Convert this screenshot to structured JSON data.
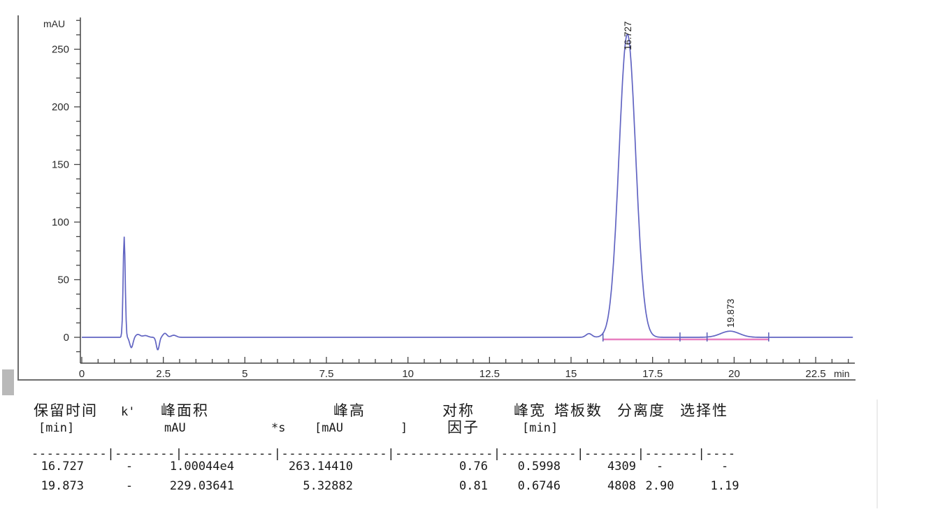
{
  "chart_data": {
    "type": "line",
    "title": "",
    "ylabel": "mAU",
    "xlabel": "min",
    "y_axis": {
      "unit": "mAU",
      "tick_values": [
        0,
        50,
        100,
        150,
        200,
        250
      ],
      "tick_labels": [
        "0",
        "50",
        "100",
        "150",
        "200",
        "250"
      ],
      "minor_step": 12.5,
      "range": [
        -22,
        278
      ]
    },
    "x_axis": {
      "unit": "min",
      "tick_values": [
        0,
        2.5,
        5,
        7.5,
        10,
        12.5,
        15,
        17.5,
        20,
        22.5
      ],
      "tick_labels": [
        "0",
        "2.5",
        "5",
        "7.5",
        "10",
        "12.5",
        "15",
        "17.5",
        "20",
        "22.5"
      ],
      "minor_step": 0.5,
      "range": [
        0,
        23.65
      ]
    },
    "trace_color": "#6164c2",
    "integration_baseline_color": "#e87fc0",
    "marker_color": "#5053b0",
    "axis_color": "#444444",
    "labeled_peaks": [
      {
        "label": "16.727",
        "rt_min": 16.727,
        "height_mAU": 263.1441,
        "width_min": 0.5998
      },
      {
        "label": "19.873",
        "rt_min": 19.873,
        "height_mAU": 5.32882,
        "width_min": 0.6746
      }
    ],
    "trace_features": [
      {
        "t": 1.3,
        "h": 87,
        "sigma": 0.032
      },
      {
        "t": 1.52,
        "h": -9,
        "sigma": 0.05
      },
      {
        "t": 1.72,
        "h": 2.5,
        "sigma": 0.07
      },
      {
        "t": 1.95,
        "h": 1.5,
        "sigma": 0.08
      },
      {
        "t": 2.33,
        "h": -11,
        "sigma": 0.045
      },
      {
        "t": 2.55,
        "h": 3.5,
        "sigma": 0.06
      },
      {
        "t": 2.82,
        "h": 1.8,
        "sigma": 0.08
      },
      {
        "t": 15.55,
        "h": 3.2,
        "sigma": 0.09
      }
    ],
    "integration": {
      "from_min": 15.98,
      "to_min": 21.06,
      "marker_ticks_min": [
        15.98,
        18.34,
        19.17,
        21.06
      ]
    }
  },
  "table": {
    "headers": {
      "col1": "保留时间",
      "col1_unit": "[min]",
      "col2": "k'",
      "col3": "峰面积",
      "col3_unit_a": "mAU",
      "col3_unit_b": "*s",
      "col4": "峰高",
      "col4_unit_a": "[mAU",
      "col4_unit_b": "]",
      "col5": "对称",
      "col5_line2": "因子",
      "col6": "峰宽",
      "col6_unit": "[min]",
      "col7": "塔板数",
      "col8": "分离度",
      "col9": "选择性"
    },
    "separator": "----------|--------|------------|--------------|-------------|----------|-------|-------|----",
    "rows": [
      {
        "rt": "16.727",
        "k": "-",
        "area": "1.00044e4",
        "height": "263.14410",
        "symmetry": "0.76",
        "width": "0.5998",
        "plates": "4309",
        "resolution": "-",
        "selectivity": "-"
      },
      {
        "rt": "19.873",
        "k": "-",
        "area": "229.03641",
        "height": "5.32882",
        "symmetry": "0.81",
        "width": "0.6746",
        "plates": "4808",
        "resolution": "2.90",
        "selectivity": "1.19"
      }
    ]
  }
}
